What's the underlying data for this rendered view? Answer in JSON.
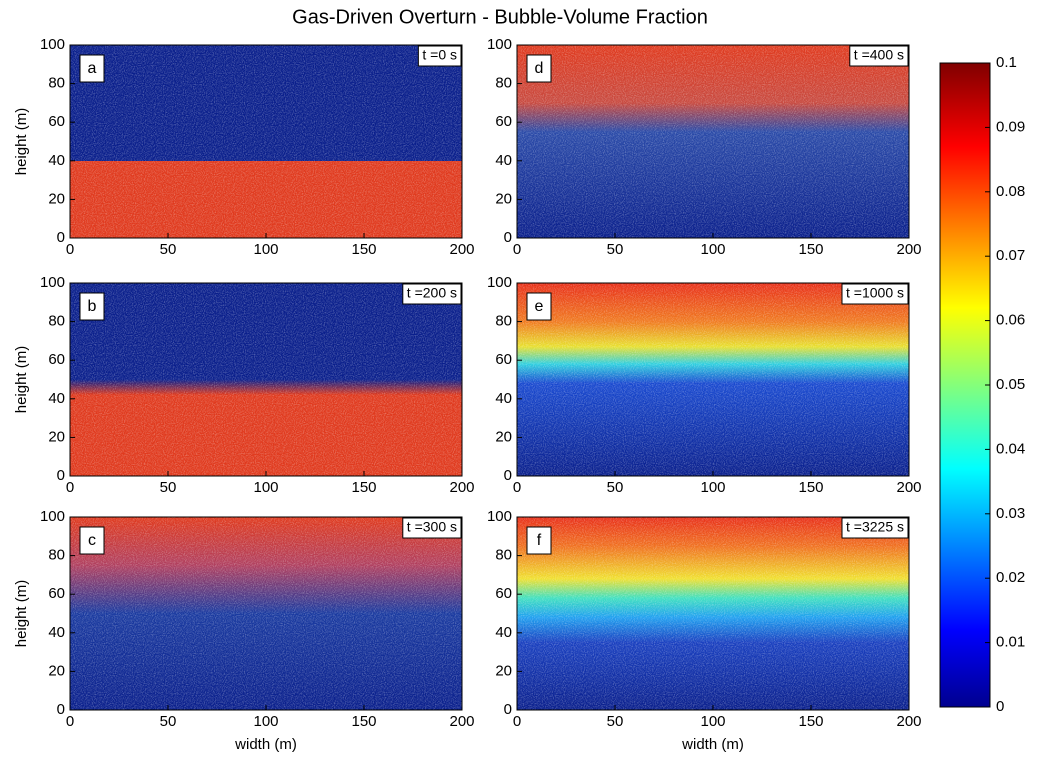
{
  "title": "Gas-Driven Overturn - Bubble-Volume Fraction",
  "chart_data": [
    {
      "type": "heatmap",
      "label": "a",
      "annotation": "t =0 s",
      "ylabel": "height  (m)",
      "xlim": [
        0,
        200
      ],
      "ylim": [
        0,
        100
      ],
      "xticks": [
        0,
        50,
        100,
        150,
        200
      ],
      "yticks": [
        0,
        20,
        40,
        60,
        80,
        100
      ]
    },
    {
      "type": "heatmap",
      "label": "d",
      "annotation": "t =400 s",
      "xlim": [
        0,
        200
      ],
      "ylim": [
        0,
        100
      ],
      "xticks": [
        0,
        50,
        100,
        150,
        200
      ],
      "yticks": [
        0,
        20,
        40,
        60,
        80,
        100
      ]
    },
    {
      "type": "heatmap",
      "label": "b",
      "annotation": "t =200 s",
      "ylabel": "height  (m)",
      "xlim": [
        0,
        200
      ],
      "ylim": [
        0,
        100
      ],
      "xticks": [
        0,
        50,
        100,
        150,
        200
      ],
      "yticks": [
        0,
        20,
        40,
        60,
        80,
        100
      ]
    },
    {
      "type": "heatmap",
      "label": "e",
      "annotation": "t =1000 s",
      "xlim": [
        0,
        200
      ],
      "ylim": [
        0,
        100
      ],
      "xticks": [
        0,
        50,
        100,
        150,
        200
      ],
      "yticks": [
        0,
        20,
        40,
        60,
        80,
        100
      ]
    },
    {
      "type": "heatmap",
      "label": "c",
      "annotation": "t =300 s",
      "ylabel": "height  (m)",
      "xlabel": "width  (m)",
      "xlim": [
        0,
        200
      ],
      "ylim": [
        0,
        100
      ],
      "xticks": [
        0,
        50,
        100,
        150,
        200
      ],
      "yticks": [
        0,
        20,
        40,
        60,
        80,
        100
      ]
    },
    {
      "type": "heatmap",
      "label": "f",
      "annotation": "t =3225 s",
      "xlabel": "width  (m)",
      "xlim": [
        0,
        200
      ],
      "ylim": [
        0,
        100
      ],
      "xticks": [
        0,
        50,
        100,
        150,
        200
      ],
      "yticks": [
        0,
        20,
        40,
        60,
        80,
        100
      ]
    }
  ],
  "colorbar": {
    "ylim": [
      0,
      0.1
    ],
    "yticks": [
      0,
      0.01,
      0.02,
      0.03,
      0.04,
      0.05,
      0.06,
      0.07,
      0.08,
      0.09,
      0.1
    ]
  }
}
